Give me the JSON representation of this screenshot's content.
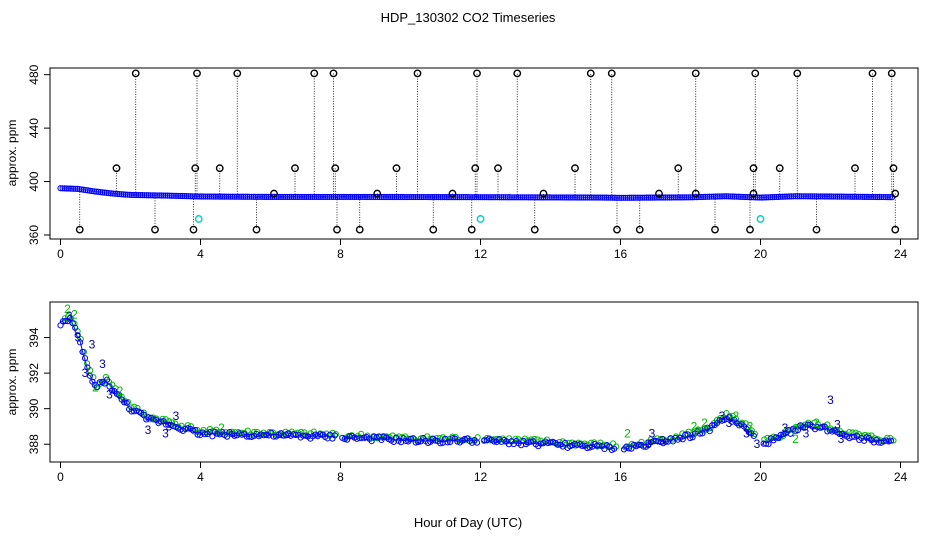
{
  "title": "HDP_130302  CO2 Timeseries",
  "xlabel": "Hour of Day (UTC)",
  "colors": {
    "series1": "#0000ff",
    "series2": "#00bb00",
    "series3": "#0000aa",
    "outlier": "#000000",
    "flagged": "#00cccc"
  },
  "chart_data": [
    {
      "type": "scatter",
      "title": "HDP_130302  CO2 Timeseries",
      "ylabel": "approx. ppm",
      "xlim": [
        -0.3,
        24.5
      ],
      "ylim": [
        357,
        485
      ],
      "xticks": [
        0,
        4,
        8,
        12,
        16,
        20,
        24
      ],
      "yticks": [
        360,
        400,
        440,
        480
      ],
      "baseline_segments": [
        [
          0,
          395.0
        ],
        [
          0.5,
          394.5
        ],
        [
          1.0,
          392.5
        ],
        [
          1.5,
          391.0
        ],
        [
          2.0,
          390.0
        ],
        [
          3.0,
          389.5
        ],
        [
          4.0,
          388.8
        ],
        [
          6.0,
          388.5
        ],
        [
          8.0,
          388.5
        ],
        [
          12.0,
          388.3
        ],
        [
          15.5,
          388.0
        ],
        [
          16.0,
          387.8
        ],
        [
          18.0,
          388.2
        ],
        [
          19.0,
          389.0
        ],
        [
          20.0,
          388.0
        ],
        [
          21.0,
          389.0
        ],
        [
          22.0,
          388.8
        ],
        [
          23.8,
          388.3
        ]
      ],
      "outliers_high": [
        2.15,
        3.9,
        5.05,
        7.25,
        7.8,
        10.2,
        11.9,
        13.05,
        15.15,
        15.75,
        18.15,
        19.85,
        21.05,
        23.2,
        23.75
      ],
      "outliers_mid": [
        1.6,
        3.85,
        4.55,
        6.7,
        7.85,
        9.6,
        11.85,
        12.5,
        14.7,
        17.65,
        19.8,
        20.55,
        22.7,
        23.8
      ],
      "outliers_low": [
        0.55,
        2.7,
        3.8,
        5.6,
        7.9,
        8.55,
        10.65,
        11.75,
        13.55,
        15.9,
        16.55,
        18.7,
        19.7,
        21.6,
        23.85
      ],
      "outliers_small": [
        6.1,
        9.05,
        11.2,
        13.8,
        17.1,
        18.15,
        19.8,
        23.85
      ],
      "outlier_values": {
        "high": 481,
        "mid": 410,
        "low": 364,
        "small": 391
      },
      "flagged": [
        [
          3.95,
          372
        ],
        [
          12.0,
          372
        ],
        [
          20.0,
          372
        ]
      ]
    },
    {
      "type": "scatter",
      "ylabel": "approx. ppm",
      "xlim": [
        -0.3,
        24.5
      ],
      "ylim": [
        387.0,
        396.0
      ],
      "xticks": [
        0,
        4,
        8,
        12,
        16,
        20,
        24
      ],
      "yticks": [
        388,
        390,
        392,
        394
      ],
      "gaps": [
        [
          7.85,
          8.05
        ],
        [
          11.95,
          12.05
        ],
        [
          15.85,
          16.05
        ],
        [
          19.85,
          20.05
        ]
      ],
      "baseline": [
        [
          0,
          394.8
        ],
        [
          0.3,
          395.0
        ],
        [
          0.6,
          393.5
        ],
        [
          0.8,
          392.0
        ],
        [
          1.0,
          391.2
        ],
        [
          1.3,
          391.6
        ],
        [
          1.6,
          390.8
        ],
        [
          2.0,
          390.0
        ],
        [
          2.5,
          389.4
        ],
        [
          3.0,
          389.2
        ],
        [
          3.5,
          388.9
        ],
        [
          4.0,
          388.6
        ],
        [
          6.0,
          388.5
        ],
        [
          8.0,
          388.4
        ],
        [
          10.0,
          388.2
        ],
        [
          12.0,
          388.2
        ],
        [
          14.0,
          388.0
        ],
        [
          15.8,
          387.8
        ],
        [
          16.0,
          387.7
        ],
        [
          16.5,
          387.9
        ],
        [
          17.0,
          388.1
        ],
        [
          17.5,
          388.3
        ],
        [
          18.0,
          388.5
        ],
        [
          18.5,
          388.8
        ],
        [
          19.0,
          389.5
        ],
        [
          19.5,
          389.0
        ],
        [
          20.0,
          388.0
        ],
        [
          20.5,
          388.3
        ],
        [
          21.0,
          388.9
        ],
        [
          21.5,
          389.0
        ],
        [
          22.0,
          388.8
        ],
        [
          22.5,
          388.5
        ],
        [
          23.0,
          388.3
        ],
        [
          23.8,
          388.1
        ]
      ],
      "markers": [
        {
          "label": "2",
          "x": 0.2,
          "y": 395.6
        },
        {
          "label": "2",
          "x": 0.4,
          "y": 395.3
        },
        {
          "label": "3",
          "x": 0.25,
          "y": 395.2
        },
        {
          "label": "3",
          "x": 0.5,
          "y": 394.0
        },
        {
          "label": "3",
          "x": 0.9,
          "y": 393.6
        },
        {
          "label": "3",
          "x": 0.7,
          "y": 392.0
        },
        {
          "label": "3",
          "x": 1.2,
          "y": 392.5
        },
        {
          "label": "2",
          "x": 1.0,
          "y": 391.2
        },
        {
          "label": "3",
          "x": 1.4,
          "y": 390.8
        },
        {
          "label": "2",
          "x": 1.7,
          "y": 391.0
        },
        {
          "label": "3",
          "x": 3.3,
          "y": 389.6
        },
        {
          "label": "3",
          "x": 3.1,
          "y": 389.0
        },
        {
          "label": "3",
          "x": 2.5,
          "y": 388.8
        },
        {
          "label": "3",
          "x": 3.0,
          "y": 388.6
        },
        {
          "label": "2",
          "x": 4.6,
          "y": 388.9
        },
        {
          "label": "2",
          "x": 16.2,
          "y": 388.6
        },
        {
          "label": "3",
          "x": 16.9,
          "y": 388.6
        },
        {
          "label": "3",
          "x": 17.2,
          "y": 388.2
        },
        {
          "label": "3",
          "x": 16.8,
          "y": 388.0
        },
        {
          "label": "2",
          "x": 18.1,
          "y": 389.0
        },
        {
          "label": "2",
          "x": 18.4,
          "y": 389.2
        },
        {
          "label": "2",
          "x": 18.2,
          "y": 388.7
        },
        {
          "label": "3",
          "x": 18.9,
          "y": 389.6
        },
        {
          "label": "2",
          "x": 19.3,
          "y": 389.6
        },
        {
          "label": "2",
          "x": 19.7,
          "y": 389.0
        },
        {
          "label": "3",
          "x": 19.1,
          "y": 389.2
        },
        {
          "label": "3",
          "x": 19.9,
          "y": 388.0
        },
        {
          "label": "3",
          "x": 19.6,
          "y": 388.6
        },
        {
          "label": "3",
          "x": 20.7,
          "y": 388.9
        },
        {
          "label": "3",
          "x": 21.3,
          "y": 388.6
        },
        {
          "label": "2",
          "x": 21.0,
          "y": 388.8
        },
        {
          "label": "3",
          "x": 22.0,
          "y": 390.5
        },
        {
          "label": "3",
          "x": 22.2,
          "y": 389.1
        },
        {
          "label": "2",
          "x": 21.6,
          "y": 389.2
        },
        {
          "label": "2",
          "x": 21.0,
          "y": 388.3
        },
        {
          "label": "3",
          "x": 22.3,
          "y": 388.3
        }
      ]
    }
  ]
}
